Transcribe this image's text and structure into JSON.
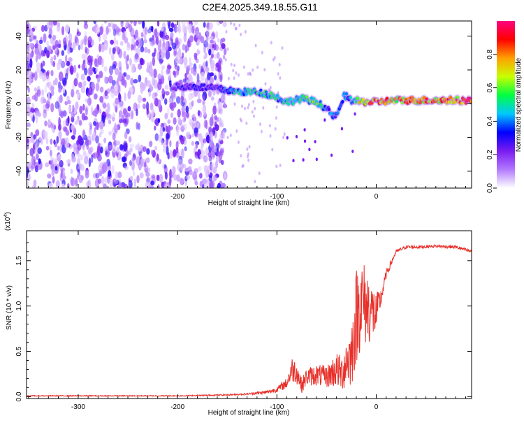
{
  "title": "C2E4.2025.349.18.55.G11",
  "chart_data": [
    {
      "type": "heatmap",
      "title": "C2E4.2025.349.18.55.G11",
      "xlabel": "Height of straight line (km)",
      "ylabel": "Frequency (Hz)",
      "xlim": [
        -352,
        96
      ],
      "ylim": [
        -50,
        49
      ],
      "xticks": [
        -300,
        -200,
        -100,
        0
      ],
      "yticks": [
        -40,
        -20,
        0,
        20,
        40
      ],
      "xtick_labels": [
        "-300",
        "-200",
        "-100",
        "0"
      ],
      "ytick_labels": [
        "-40",
        "-20",
        "0",
        "20",
        "40"
      ],
      "colorbar": {
        "label": "Normalized spectral amplitude",
        "range": [
          0,
          1
        ],
        "ticks": [
          0.0,
          0.2,
          0.4,
          0.6,
          0.8
        ],
        "tick_labels": [
          "0.0",
          "0.2",
          "0.4",
          "0.6",
          "0.8"
        ],
        "colors": [
          "#ffffff",
          "#b27aff",
          "#7a1cf0",
          "#0000ff",
          "#00c8ff",
          "#00ff40",
          "#c8ff00",
          "#ffa000",
          "#ff0000",
          "#ff0080"
        ]
      },
      "noise_region_x": [
        -352,
        -152
      ],
      "noise_amplitude": 0.25,
      "ridge": {
        "x": [
          -205,
          -180,
          -160,
          -140,
          -120,
          -105,
          -90,
          -75,
          -60,
          -50,
          -42,
          -38,
          -32,
          -25,
          -15,
          0,
          20,
          50,
          96
        ],
        "frequency": [
          10,
          10,
          9,
          7,
          7,
          5,
          1,
          3,
          1,
          -3,
          -8,
          -5,
          5,
          2,
          1,
          1,
          2,
          2,
          2
        ],
        "amplitude": [
          0.25,
          0.3,
          0.3,
          0.45,
          0.5,
          0.5,
          0.45,
          0.5,
          0.55,
          0.4,
          0.35,
          0.35,
          0.4,
          0.45,
          0.75,
          0.85,
          0.75,
          0.8,
          0.9
        ]
      }
    },
    {
      "type": "line",
      "xlabel": "Height of straight line (km)",
      "ylabel": "SNR (10 * v/v)",
      "multiplier_label": "(x10",
      "multiplier_exponent": "4",
      "xlim": [
        -352,
        96
      ],
      "ylim": [
        -0.02,
        1.83
      ],
      "xticks": [
        -300,
        -200,
        -100,
        0
      ],
      "yticks": [
        0.0,
        0.5,
        1.0,
        1.5
      ],
      "xtick_labels": [
        "-300",
        "-200",
        "-100",
        "0"
      ],
      "ytick_labels": [
        "0.0",
        "0.5",
        "1.0",
        "1.5"
      ],
      "color": "#e8302a",
      "series": [
        {
          "x": [
            -352,
            -300,
            -250,
            -200,
            -150,
            -130,
            -110,
            -100,
            -90,
            -85,
            -80,
            -75,
            -70,
            -60,
            -50,
            -40,
            -35,
            -30,
            -25,
            -20,
            -15,
            -10,
            -5,
            0,
            5,
            10,
            20,
            30,
            40,
            60,
            80,
            96
          ],
          "y": [
            0.01,
            0.01,
            0.01,
            0.01,
            0.02,
            0.03,
            0.05,
            0.08,
            0.15,
            0.3,
            0.28,
            0.12,
            0.22,
            0.24,
            0.22,
            0.3,
            0.25,
            0.4,
            0.45,
            0.9,
            1.05,
            1.0,
            0.95,
            0.9,
            1.1,
            1.35,
            1.6,
            1.65,
            1.65,
            1.66,
            1.65,
            1.6
          ],
          "jitter": [
            0.005,
            0.005,
            0.005,
            0.005,
            0.008,
            0.01,
            0.02,
            0.03,
            0.06,
            0.14,
            0.14,
            0.08,
            0.1,
            0.12,
            0.12,
            0.2,
            0.2,
            0.3,
            0.35,
            0.55,
            0.5,
            0.45,
            0.35,
            0.25,
            0.1,
            0.05,
            0.02,
            0.02,
            0.02,
            0.015,
            0.02,
            0.02
          ]
        }
      ]
    }
  ]
}
